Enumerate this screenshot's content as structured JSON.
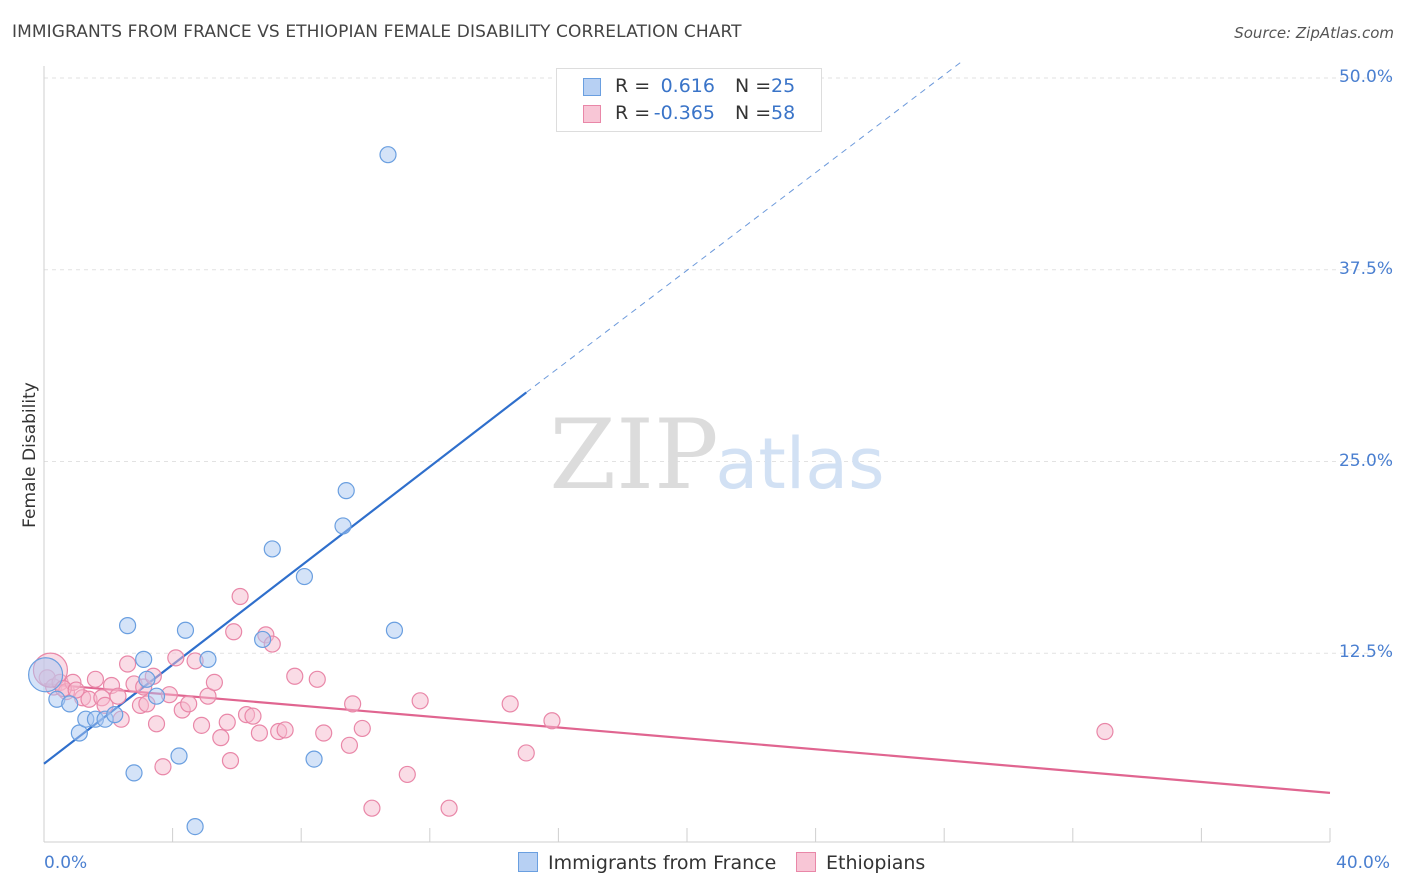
{
  "chart_data": {
    "type": "scatter",
    "title": "IMMIGRANTS FROM FRANCE VS ETHIOPIAN FEMALE DISABILITY CORRELATION CHART",
    "source": "Source: ZipAtlas.com",
    "watermark": {
      "zip": "ZIP",
      "atlas": "atlas"
    },
    "ylabel": "Female Disability",
    "xlim": [
      0,
      40
    ],
    "ylim": [
      0,
      50
    ],
    "x_tick_labels": [
      "0.0%",
      "40.0%"
    ],
    "y_ticks": [
      {
        "value": 12.5,
        "label": "12.5%"
      },
      {
        "value": 25.0,
        "label": "25.0%"
      },
      {
        "value": 37.5,
        "label": "37.5%"
      },
      {
        "value": 50.0,
        "label": "50.0%"
      }
    ],
    "legend": [
      {
        "r_label": "R =",
        "r_value": "0.616",
        "n_label": "N =",
        "n_value": "25"
      },
      {
        "r_label": "R =",
        "r_value": "-0.365",
        "n_label": "N =",
        "n_value": "58"
      }
    ],
    "series": [
      {
        "name": "Immigrants from France",
        "color": "#6a9fe0",
        "fill": "#a9c8f2",
        "trend": {
          "x0": 0,
          "y0": 5.3,
          "x1": 15,
          "y1": 29.5,
          "dash_to_x": 28.5,
          "dash_to_y": 51.0,
          "color": "#2f6fcc"
        },
        "points": [
          {
            "x": 0.05,
            "y": 11.1,
            "big": true
          },
          {
            "x": 0.4,
            "y": 9.5
          },
          {
            "x": 0.8,
            "y": 9.2
          },
          {
            "x": 1.1,
            "y": 7.3
          },
          {
            "x": 1.3,
            "y": 8.2
          },
          {
            "x": 1.6,
            "y": 8.2
          },
          {
            "x": 1.9,
            "y": 8.2
          },
          {
            "x": 2.2,
            "y": 8.5
          },
          {
            "x": 2.6,
            "y": 14.3
          },
          {
            "x": 2.8,
            "y": 4.7
          },
          {
            "x": 3.1,
            "y": 12.1
          },
          {
            "x": 3.2,
            "y": 10.8
          },
          {
            "x": 3.5,
            "y": 9.7
          },
          {
            "x": 4.2,
            "y": 5.8
          },
          {
            "x": 4.4,
            "y": 14.0
          },
          {
            "x": 4.7,
            "y": 1.2
          },
          {
            "x": 5.1,
            "y": 12.1
          },
          {
            "x": 6.8,
            "y": 13.4
          },
          {
            "x": 7.1,
            "y": 19.3
          },
          {
            "x": 8.1,
            "y": 17.5
          },
          {
            "x": 8.4,
            "y": 5.6
          },
          {
            "x": 9.3,
            "y": 20.8
          },
          {
            "x": 9.4,
            "y": 23.1
          },
          {
            "x": 10.9,
            "y": 14.0
          },
          {
            "x": 10.7,
            "y": 45.0
          }
        ]
      },
      {
        "name": "Ethiopians",
        "color": "#e987a8",
        "fill": "#f6b9cd",
        "trend": {
          "x0": 0,
          "y0": 10.5,
          "x1": 40,
          "y1": 3.4,
          "color": "#e06590"
        },
        "points": [
          {
            "x": 0.1,
            "y": 10.9
          },
          {
            "x": 0.3,
            "y": 10.3
          },
          {
            "x": 0.5,
            "y": 10.6
          },
          {
            "x": 0.7,
            "y": 10.0
          },
          {
            "x": 0.9,
            "y": 10.6
          },
          {
            "x": 1.2,
            "y": 9.6
          },
          {
            "x": 1.4,
            "y": 9.5
          },
          {
            "x": 1.6,
            "y": 10.8
          },
          {
            "x": 1.8,
            "y": 9.6
          },
          {
            "x": 1.9,
            "y": 9.1
          },
          {
            "x": 2.1,
            "y": 10.4
          },
          {
            "x": 2.3,
            "y": 9.7
          },
          {
            "x": 2.4,
            "y": 8.2
          },
          {
            "x": 2.6,
            "y": 11.8
          },
          {
            "x": 2.8,
            "y": 10.5
          },
          {
            "x": 3.0,
            "y": 9.1
          },
          {
            "x": 3.1,
            "y": 10.3
          },
          {
            "x": 3.2,
            "y": 9.2
          },
          {
            "x": 3.4,
            "y": 11.0
          },
          {
            "x": 3.5,
            "y": 7.9
          },
          {
            "x": 3.7,
            "y": 5.1
          },
          {
            "x": 3.9,
            "y": 9.8
          },
          {
            "x": 4.1,
            "y": 12.2
          },
          {
            "x": 4.3,
            "y": 8.8
          },
          {
            "x": 4.5,
            "y": 9.2
          },
          {
            "x": 4.7,
            "y": 12.0
          },
          {
            "x": 4.9,
            "y": 7.8
          },
          {
            "x": 5.1,
            "y": 9.7
          },
          {
            "x": 5.3,
            "y": 10.6
          },
          {
            "x": 5.5,
            "y": 7.0
          },
          {
            "x": 5.7,
            "y": 8.0
          },
          {
            "x": 5.8,
            "y": 5.5
          },
          {
            "x": 5.9,
            "y": 13.9
          },
          {
            "x": 6.1,
            "y": 16.2
          },
          {
            "x": 6.3,
            "y": 8.5
          },
          {
            "x": 6.5,
            "y": 8.4
          },
          {
            "x": 6.7,
            "y": 7.3
          },
          {
            "x": 6.9,
            "y": 13.7
          },
          {
            "x": 7.1,
            "y": 13.1
          },
          {
            "x": 7.3,
            "y": 7.4
          },
          {
            "x": 7.5,
            "y": 7.5
          },
          {
            "x": 7.8,
            "y": 11.0
          },
          {
            "x": 8.5,
            "y": 10.8
          },
          {
            "x": 8.7,
            "y": 7.3
          },
          {
            "x": 9.5,
            "y": 6.5
          },
          {
            "x": 9.6,
            "y": 9.2
          },
          {
            "x": 9.9,
            "y": 7.6
          },
          {
            "x": 10.2,
            "y": 2.4
          },
          {
            "x": 11.3,
            "y": 4.6
          },
          {
            "x": 11.7,
            "y": 9.4
          },
          {
            "x": 12.6,
            "y": 2.4
          },
          {
            "x": 14.5,
            "y": 9.2
          },
          {
            "x": 15.0,
            "y": 6.0
          },
          {
            "x": 15.8,
            "y": 8.1
          },
          {
            "x": 33.0,
            "y": 7.4
          },
          {
            "x": 0.2,
            "y": 11.4,
            "big": true
          },
          {
            "x": 0.6,
            "y": 10.2
          },
          {
            "x": 1.0,
            "y": 10.1
          }
        ]
      }
    ]
  }
}
